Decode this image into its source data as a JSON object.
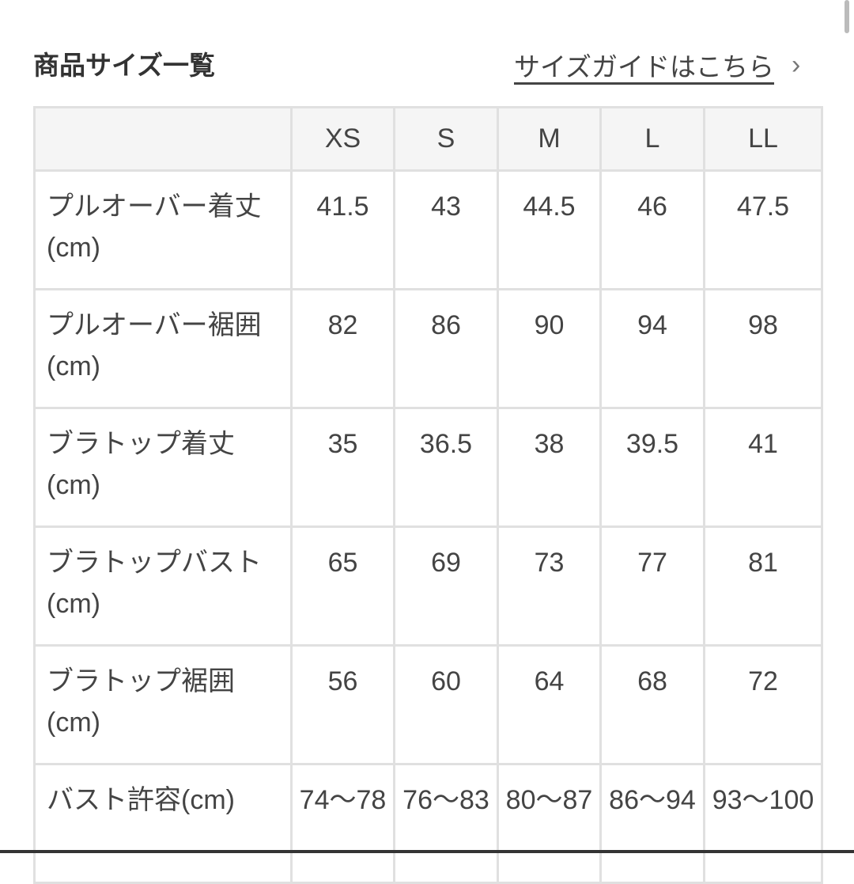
{
  "header": {
    "title": "商品サイズ一覧",
    "guide_link": "サイズガイドはこちら",
    "guide_chevron": "›"
  },
  "table": {
    "columns": [
      "",
      "XS",
      "S",
      "M",
      "L",
      "LL"
    ],
    "rows": [
      {
        "label": "プルオーバー着丈(cm)",
        "values": [
          "41.5",
          "43",
          "44.5",
          "46",
          "47.5"
        ]
      },
      {
        "label": "プルオーバー裾囲(cm)",
        "values": [
          "82",
          "86",
          "90",
          "94",
          "98"
        ]
      },
      {
        "label": "ブラトップ着丈(cm)",
        "values": [
          "35",
          "36.5",
          "38",
          "39.5",
          "41"
        ]
      },
      {
        "label": "ブラトップバスト(cm)",
        "values": [
          "65",
          "69",
          "73",
          "77",
          "81"
        ]
      },
      {
        "label": "ブラトップ裾囲(cm)",
        "values": [
          "56",
          "60",
          "64",
          "68",
          "72"
        ]
      },
      {
        "label": "バスト許容(cm)",
        "values": [
          "74〜78",
          "76〜83",
          "80〜87",
          "86〜94",
          "93〜100"
        ]
      }
    ]
  }
}
